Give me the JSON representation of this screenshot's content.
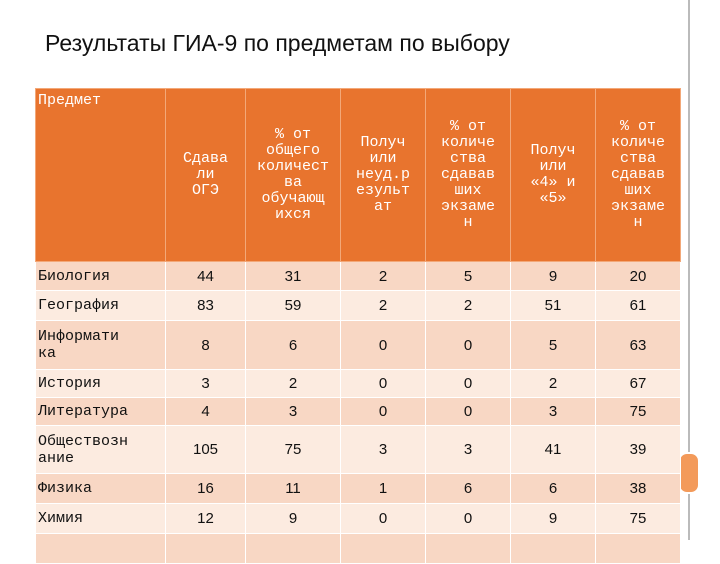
{
  "title": "Результаты ГИА-9 по предметам по выбору",
  "table": {
    "header": [
      "Предмет",
      "Сдава\nли\nОГЭ",
      "% от\nобщего\nколичест\nва\nобучающ\nихся",
      "Получ\nили\nнеуд.р\nезульт\nат",
      "% от\nколиче\nства\nсдавав\nших\nэкзаме\nн",
      "Получ\nили\n«4» и\n«5»",
      "% от\nколиче\nства\nсдавав\nших\nэкзаме\nн"
    ],
    "rows": [
      [
        "Биология",
        44,
        31,
        2,
        5,
        9,
        20
      ],
      [
        "География",
        83,
        59,
        2,
        2,
        51,
        61
      ],
      [
        "Информати\nка",
        8,
        6,
        0,
        0,
        5,
        63
      ],
      [
        "История",
        3,
        2,
        0,
        0,
        2,
        67
      ],
      [
        "Литература",
        4,
        3,
        0,
        0,
        3,
        75
      ],
      [
        "Обществозн\nание",
        105,
        75,
        3,
        3,
        41,
        39
      ],
      [
        "Физика",
        16,
        11,
        1,
        6,
        6,
        38
      ],
      [
        "Химия",
        12,
        9,
        0,
        0,
        9,
        75
      ]
    ]
  }
}
